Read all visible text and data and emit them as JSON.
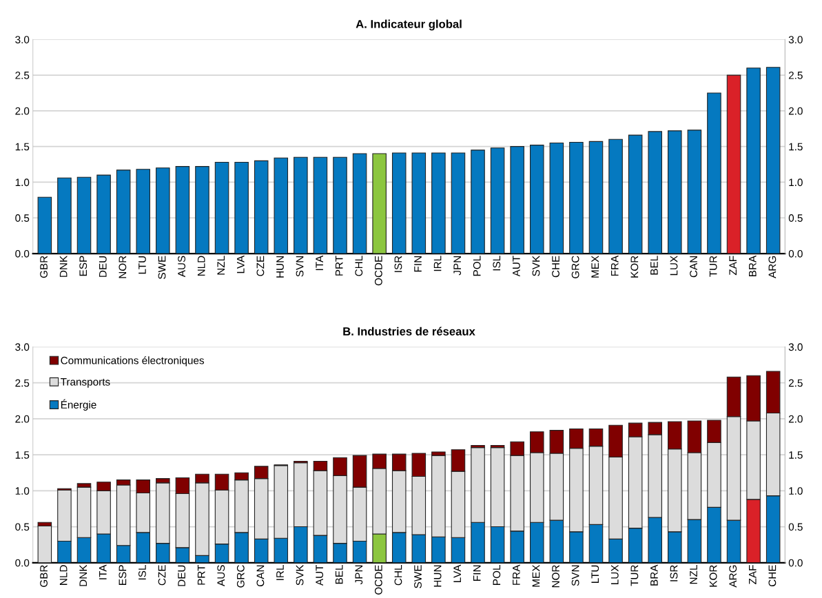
{
  "chart_data": [
    {
      "type": "bar",
      "title": "A. Indicateur global",
      "categories": [
        "GBR",
        "DNK",
        "ESP",
        "DEU",
        "NOR",
        "LTU",
        "SWE",
        "AUS",
        "NLD",
        "NZL",
        "LVA",
        "CZE",
        "HUN",
        "SVN",
        "ITA",
        "PRT",
        "CHL",
        "OCDE",
        "ISR",
        "FIN",
        "IRL",
        "JPN",
        "POL",
        "ISL",
        "AUT",
        "SVK",
        "CHE",
        "GRC",
        "MEX",
        "FRA",
        "KOR",
        "BEL",
        "LUX",
        "CAN",
        "TUR",
        "ZAF",
        "BRA",
        "ARG"
      ],
      "series": [
        {
          "color": "#0579c0",
          "colors": [
            "#0579c0",
            "#0579c0",
            "#0579c0",
            "#0579c0",
            "#0579c0",
            "#0579c0",
            "#0579c0",
            "#0579c0",
            "#0579c0",
            "#0579c0",
            "#0579c0",
            "#0579c0",
            "#0579c0",
            "#0579c0",
            "#0579c0",
            "#0579c0",
            "#0579c0",
            "#8cc63f",
            "#0579c0",
            "#0579c0",
            "#0579c0",
            "#0579c0",
            "#0579c0",
            "#0579c0",
            "#0579c0",
            "#0579c0",
            "#0579c0",
            "#0579c0",
            "#0579c0",
            "#0579c0",
            "#0579c0",
            "#0579c0",
            "#0579c0",
            "#0579c0",
            "#0579c0",
            "#da2128",
            "#0579c0",
            "#0579c0"
          ],
          "values": [
            0.79,
            1.06,
            1.07,
            1.1,
            1.17,
            1.18,
            1.2,
            1.22,
            1.22,
            1.28,
            1.28,
            1.3,
            1.34,
            1.35,
            1.35,
            1.35,
            1.4,
            1.4,
            1.41,
            1.41,
            1.41,
            1.41,
            1.45,
            1.48,
            1.5,
            1.52,
            1.55,
            1.56,
            1.57,
            1.6,
            1.66,
            1.71,
            1.72,
            1.73,
            2.25,
            2.5,
            2.6,
            2.61
          ]
        }
      ],
      "ylim": [
        0,
        3
      ],
      "yticks": [
        {
          "value": 0,
          "label": "0.0"
        },
        {
          "value": 0.5,
          "label": "0.5"
        },
        {
          "value": 1,
          "label": "1.0"
        },
        {
          "value": 1.5,
          "label": "1.5"
        },
        {
          "value": 2,
          "label": "2.0"
        },
        {
          "value": 2.5,
          "label": "2.5"
        },
        {
          "value": 3,
          "label": "3.0"
        }
      ],
      "y2lim": [
        0,
        3
      ],
      "y2ticks": [
        {
          "value": 0,
          "label": "0.0"
        },
        {
          "value": 0.5,
          "label": "0.5"
        },
        {
          "value": 1,
          "label": "1.0"
        },
        {
          "value": 1.5,
          "label": "1.5"
        },
        {
          "value": 2,
          "label": "2.0"
        },
        {
          "value": 2.5,
          "label": "2.5"
        },
        {
          "value": 3,
          "label": "3.0"
        }
      ],
      "grid": "y",
      "legend": false
    },
    {
      "type": "bar",
      "title": "B. Industries de réseaux",
      "stacked": true,
      "categories": [
        "GBR",
        "NLD",
        "DNK",
        "ITA",
        "ESP",
        "ISL",
        "CZE",
        "DEU",
        "PRT",
        "AUS",
        "GRC",
        "CAN",
        "IRL",
        "SVK",
        "AUT",
        "BEL",
        "JPN",
        "OCDE",
        "CHL",
        "SWE",
        "HUN",
        "LVA",
        "FIN",
        "POL",
        "FRA",
        "MEX",
        "NOR",
        "SVN",
        "LTU",
        "LUX",
        "TUR",
        "BRA",
        "ISR",
        "NZL",
        "KOR",
        "ARG",
        "ZAF",
        "CHE"
      ],
      "series": [
        {
          "name": "Énergie",
          "color": "#0579c0",
          "colors": [
            "#0579c0",
            "#0579c0",
            "#0579c0",
            "#0579c0",
            "#0579c0",
            "#0579c0",
            "#0579c0",
            "#0579c0",
            "#0579c0",
            "#0579c0",
            "#0579c0",
            "#0579c0",
            "#0579c0",
            "#0579c0",
            "#0579c0",
            "#0579c0",
            "#0579c0",
            "#8cc63f",
            "#0579c0",
            "#0579c0",
            "#0579c0",
            "#0579c0",
            "#0579c0",
            "#0579c0",
            "#0579c0",
            "#0579c0",
            "#0579c0",
            "#0579c0",
            "#0579c0",
            "#0579c0",
            "#0579c0",
            "#0579c0",
            "#0579c0",
            "#0579c0",
            "#0579c0",
            "#0579c0",
            "#da2128",
            "#0579c0"
          ],
          "values": [
            0,
            0.3,
            0.35,
            0.4,
            0.24,
            0.42,
            0.27,
            0.21,
            0.1,
            0.26,
            0.42,
            0.33,
            0.34,
            0.5,
            0.38,
            0.27,
            0.3,
            0.4,
            0.42,
            0.39,
            0.36,
            0.35,
            0.56,
            0.5,
            0.44,
            0.56,
            0.59,
            0.43,
            0.53,
            0.33,
            0.48,
            0.63,
            0.43,
            0.6,
            0.77,
            0.59,
            0.88,
            0.93
          ]
        },
        {
          "name": "Transports",
          "color": "#dcdcdc",
          "values": [
            0.51,
            0.71,
            0.7,
            0.6,
            0.84,
            0.55,
            0.84,
            0.75,
            1.01,
            0.75,
            0.73,
            0.84,
            1.01,
            0.89,
            0.9,
            0.94,
            0.75,
            0.91,
            0.86,
            0.81,
            1.13,
            0.92,
            1.04,
            1.1,
            1.05,
            0.97,
            0.93,
            1.16,
            1.09,
            1.14,
            1.27,
            1.15,
            1.15,
            0.93,
            0.9,
            1.44,
            1.09,
            1.15
          ]
        },
        {
          "name": "Communications électroniques",
          "color": "#800000",
          "values": [
            0.05,
            0.02,
            0.05,
            0.12,
            0.07,
            0.18,
            0.06,
            0.22,
            0.12,
            0.22,
            0.1,
            0.17,
            0.01,
            0.02,
            0.13,
            0.25,
            0.44,
            0.2,
            0.23,
            0.32,
            0.05,
            0.3,
            0.03,
            0.03,
            0.19,
            0.29,
            0.32,
            0.27,
            0.24,
            0.44,
            0.19,
            0.17,
            0.38,
            0.44,
            0.31,
            0.55,
            0.63,
            0.58
          ]
        }
      ],
      "ylim": [
        0,
        3
      ],
      "yticks": [
        {
          "value": 0,
          "label": "0.0"
        },
        {
          "value": 0.5,
          "label": "0.5"
        },
        {
          "value": 1,
          "label": "1.0"
        },
        {
          "value": 1.5,
          "label": "1.5"
        },
        {
          "value": 2,
          "label": "2.0"
        },
        {
          "value": 2.5,
          "label": "2.5"
        },
        {
          "value": 3,
          "label": "3.0"
        }
      ],
      "y2lim": [
        0,
        3
      ],
      "y2ticks": [
        {
          "value": 0,
          "label": "0.0"
        },
        {
          "value": 0.5,
          "label": "0.5"
        },
        {
          "value": 1,
          "label": "1.0"
        },
        {
          "value": 1.5,
          "label": "1.5"
        },
        {
          "value": 2,
          "label": "2.0"
        },
        {
          "value": 2.5,
          "label": "2.5"
        },
        {
          "value": 3,
          "label": "3.0"
        }
      ],
      "grid": "y",
      "legend": "top left"
    }
  ]
}
